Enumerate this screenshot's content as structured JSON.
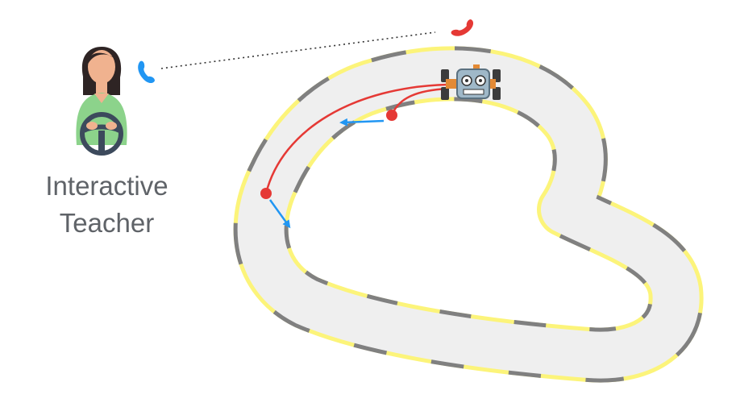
{
  "teacher": {
    "label_line1": "Interactive",
    "label_line2": "Teacher",
    "icon": "teacher-driving-avatar"
  },
  "phones": {
    "teacher_icon": "phone-icon",
    "robot_icon": "phone-icon"
  },
  "robot": {
    "icon": "robot-car-icon"
  },
  "colors": {
    "track_fill": "#efefef",
    "track_edge_yellow": "#fcf47a",
    "track_edge_gray": "#808080",
    "trajectory": "#e53935",
    "arrow": "#2196f3",
    "phone_teacher": "#2196f3",
    "phone_robot": "#e53935",
    "skin": "#f0b28f",
    "hair": "#2e2424",
    "shirt": "#8cd38b",
    "wheel": "#3c4a5c",
    "label": "#5f6368"
  }
}
